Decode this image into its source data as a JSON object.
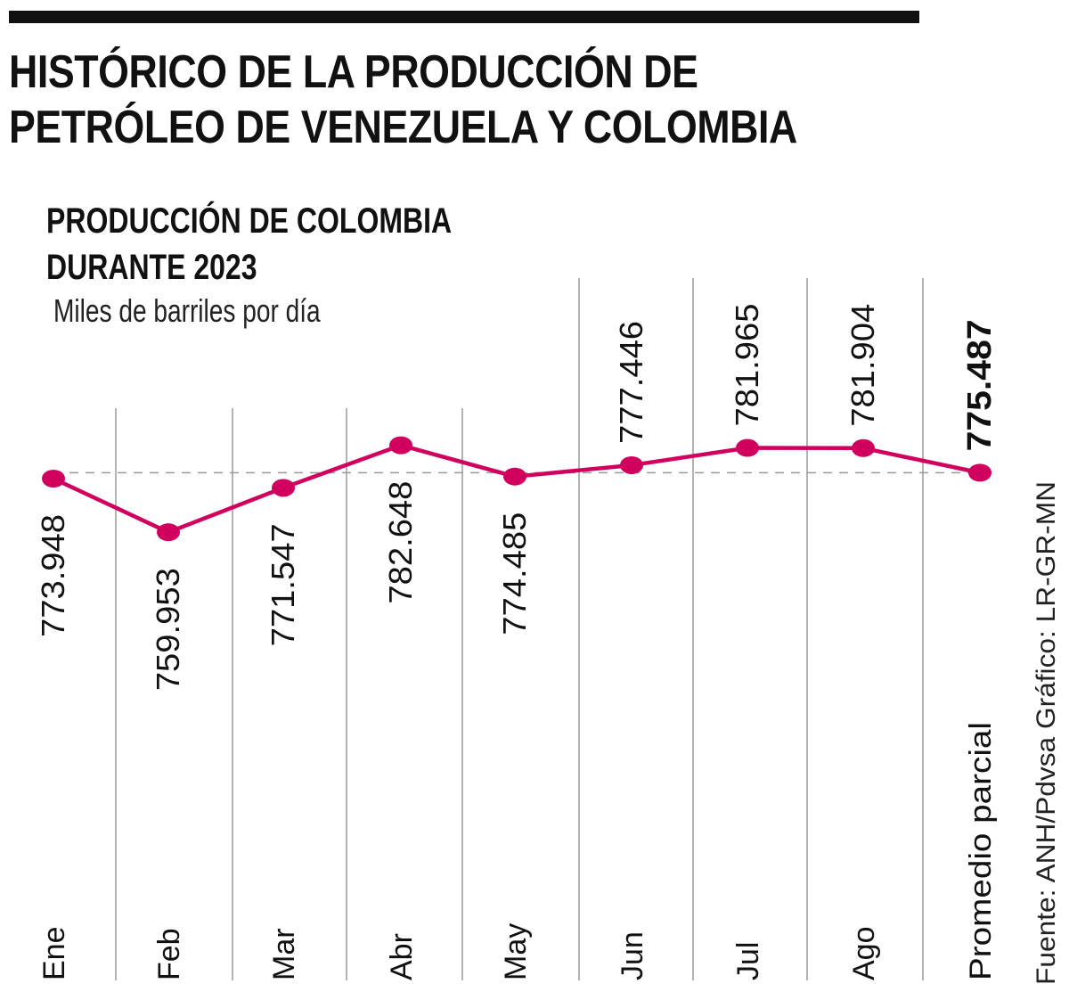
{
  "header": {
    "title": "HISTÓRICO DE LA PRODUCCIÓN DE\nPETRÓLEO DE VENEZUELA Y COLOMBIA",
    "subtitle": "PRODUCCIÓN DE COLOMBIA\nDURANTE 2023",
    "units": "Miles de barriles por día"
  },
  "footer": {
    "source": "Fuente: ANH/Pdvsa   Gráfico: LR-GR-MN"
  },
  "colors": {
    "line": "#d1005f",
    "grid": "#9a9a9a",
    "reference": "#9a9a9a",
    "text": "#111111"
  },
  "chart_data": {
    "type": "line",
    "title": "PRODUCCIÓN DE COLOMBIA DURANTE 2023",
    "ylabel": "Miles de barriles por día",
    "xlabel": "",
    "categories": [
      "Ene",
      "Feb",
      "Mar",
      "Abr",
      "May",
      "Jun",
      "Jul",
      "Ago",
      "Promedio parcial"
    ],
    "values": [
      773.948,
      759.953,
      771.547,
      782.648,
      774.485,
      777.446,
      781.965,
      781.904,
      775.487
    ],
    "value_labels": [
      "773.948",
      "759.953",
      "771.547",
      "782.648",
      "774.485",
      "777.446",
      "781.965",
      "781.904",
      "775.487"
    ],
    "label_side": [
      "below",
      "below",
      "below",
      "below",
      "below",
      "above",
      "above",
      "above",
      "above"
    ],
    "highlight_last": true,
    "reference_line": 775.487,
    "ylim": [
      755,
      790
    ],
    "grid": true,
    "legend": "none"
  }
}
